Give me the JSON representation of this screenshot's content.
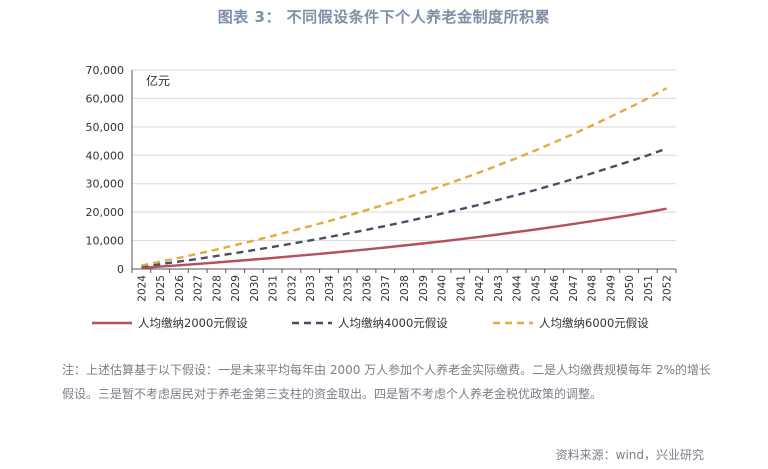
{
  "header": {
    "title": "图表 3：  不同假设条件下个人养老金制度所积累"
  },
  "chart_data": {
    "type": "line",
    "unit_label": "亿元",
    "ylim": [
      0,
      70000
    ],
    "yticks": [
      0,
      10000,
      20000,
      30000,
      40000,
      50000,
      60000,
      70000
    ],
    "ytick_labels": [
      "0",
      "10,000",
      "20,000",
      "30,000",
      "40,000",
      "50,000",
      "60,000",
      "70,000"
    ],
    "categories": [
      "2024",
      "2025",
      "2026",
      "2027",
      "2028",
      "2029",
      "2030",
      "2031",
      "2032",
      "2033",
      "2034",
      "2035",
      "2036",
      "2037",
      "2038",
      "2039",
      "2040",
      "2041",
      "2042",
      "2043",
      "2044",
      "2045",
      "2046",
      "2047",
      "2048",
      "2049",
      "2050",
      "2051",
      "2052"
    ],
    "grid": {
      "horizontal": true,
      "vertical": false
    },
    "legend_position": "bottom",
    "series": [
      {
        "name": "人均缴纳2000元假设",
        "color": "#b5505e",
        "dash": "solid",
        "values": [
          400,
          850,
          1300,
          1780,
          2280,
          2800,
          3330,
          3880,
          4450,
          5030,
          5630,
          6250,
          6900,
          7570,
          8260,
          8980,
          9720,
          10500,
          11300,
          12150,
          13000,
          13900,
          14850,
          15800,
          16800,
          17850,
          18900,
          20000,
          21200
        ]
      },
      {
        "name": "人均缴纳4000元假设",
        "color": "#465064",
        "dash": "dashed",
        "values": [
          800,
          1700,
          2600,
          3560,
          4560,
          5600,
          6660,
          7760,
          8900,
          10060,
          11260,
          12500,
          13800,
          15140,
          16520,
          17960,
          19440,
          21000,
          22600,
          24300,
          26000,
          27800,
          29700,
          31600,
          33600,
          35700,
          37800,
          40000,
          42400
        ]
      },
      {
        "name": "人均缴纳6000元假设",
        "color": "#e6a93a",
        "dash": "dashed",
        "values": [
          1200,
          2550,
          3900,
          5340,
          6840,
          8400,
          9990,
          11640,
          13350,
          15090,
          16890,
          18750,
          20700,
          22710,
          24780,
          26940,
          29160,
          31500,
          33900,
          36450,
          39000,
          41700,
          44550,
          47400,
          50400,
          53550,
          56700,
          60000,
          63600
        ]
      }
    ]
  },
  "footnote": {
    "text": "注：上述估算基于以下假设：一是未来平均每年由 2000 万人参加个人养老金实际缴费。二是人均缴费规模每年 2%的增长假设。三是暂不考虑居民对于养老金第三支柱的资金取出。四是暂不考虑个人养老金税优政策的调整。"
  },
  "source": {
    "text": "资料来源：wind，兴业研究"
  }
}
